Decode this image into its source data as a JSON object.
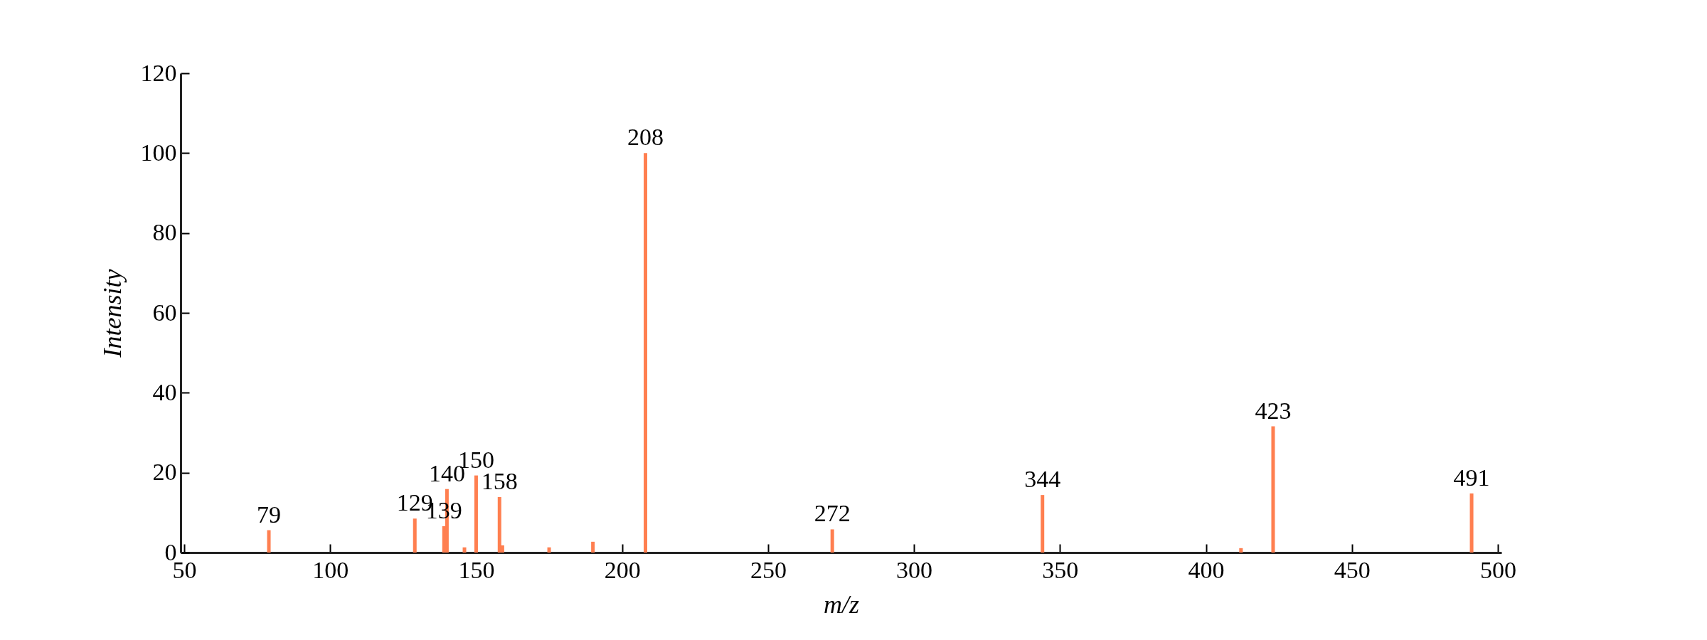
{
  "chart_data": {
    "type": "bar",
    "xlabel": "m/z",
    "ylabel": "Intensity",
    "x": [
      79,
      129,
      139,
      140,
      146,
      150,
      158,
      159,
      175,
      190,
      208,
      272,
      344,
      412,
      423,
      491
    ],
    "values": [
      5.6,
      8.5,
      6.6,
      15.9,
      1.3,
      19.3,
      13.9,
      1.8,
      1.3,
      2.7,
      100,
      5.8,
      14.4,
      1.1,
      31.6,
      14.8
    ],
    "annotations": [
      {
        "text": "79",
        "x": 79,
        "y": 5.6
      },
      {
        "text": "129",
        "x": 129,
        "y": 8.5
      },
      {
        "text": "139",
        "x": 139,
        "y": 6.6
      },
      {
        "text": "140",
        "x": 140,
        "y": 15.9
      },
      {
        "text": "150",
        "x": 150,
        "y": 19.3
      },
      {
        "text": "158",
        "x": 158,
        "y": 13.9
      },
      {
        "text": "208",
        "x": 208,
        "y": 100
      },
      {
        "text": "272",
        "x": 272,
        "y": 5.8
      },
      {
        "text": "344",
        "x": 344,
        "y": 14.4
      },
      {
        "text": "423",
        "x": 423,
        "y": 31.6
      },
      {
        "text": "491",
        "x": 491,
        "y": 14.8
      }
    ],
    "color": "#ff7f50",
    "xlim": [
      50,
      500
    ],
    "xticks": [
      50,
      100,
      150,
      200,
      250,
      300,
      350,
      400,
      450,
      500
    ],
    "ylim": [
      0,
      120
    ],
    "yticks": [
      0,
      20,
      40,
      60,
      80,
      100,
      120
    ],
    "grid": false
  }
}
